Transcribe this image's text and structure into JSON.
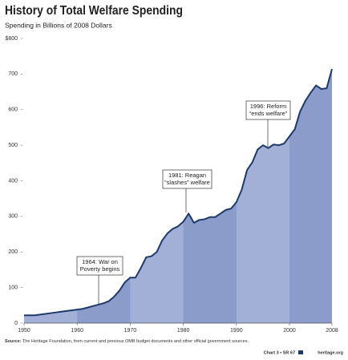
{
  "chart_data": {
    "type": "area",
    "title": "History of Total Welfare Spending",
    "subtitle": "Spending in Billions of 2008 Dollars",
    "x": [
      1950,
      1951,
      1952,
      1953,
      1954,
      1955,
      1956,
      1957,
      1958,
      1959,
      1960,
      1961,
      1962,
      1963,
      1964,
      1965,
      1966,
      1967,
      1968,
      1969,
      1970,
      1971,
      1972,
      1973,
      1974,
      1975,
      1976,
      1977,
      1978,
      1979,
      1980,
      1981,
      1982,
      1983,
      1984,
      1985,
      1986,
      1987,
      1988,
      1989,
      1990,
      1991,
      1992,
      1993,
      1994,
      1995,
      1996,
      1997,
      1998,
      1999,
      2000,
      2001,
      2002,
      2003,
      2004,
      2005,
      2006,
      2007,
      2008
    ],
    "values": [
      22,
      22,
      22,
      24,
      26,
      28,
      30,
      32,
      34,
      36,
      38,
      40,
      44,
      48,
      52,
      56,
      62,
      75,
      92,
      115,
      128,
      128,
      155,
      185,
      188,
      200,
      232,
      252,
      265,
      272,
      285,
      308,
      282,
      290,
      292,
      298,
      298,
      308,
      318,
      322,
      340,
      375,
      430,
      452,
      488,
      500,
      492,
      502,
      500,
      505,
      525,
      545,
      595,
      625,
      648,
      668,
      658,
      660,
      714
    ],
    "color": "#1d3a6b",
    "fill": "#a2b0d8",
    "band_fill": "#8b9cca",
    "xlim": [
      1950,
      2008
    ],
    "xticks": [
      1950,
      1960,
      1970,
      1980,
      1990,
      2000,
      2008
    ],
    "ylim": [
      0,
      800
    ],
    "yticks": [
      0,
      100,
      200,
      300,
      400,
      500,
      600,
      700,
      {
        "value": 800,
        "label": "$800"
      }
    ],
    "annotations": [
      [
        "1964: War on",
        "Poverty begins"
      ],
      [
        "1981: Reagan",
        "“slashes” welfare"
      ],
      [
        "1996: Reform",
        "“ends welfare”"
      ]
    ],
    "source_label": "Source:",
    "source": "The Heritage Foundation, from current and previous OMB budget documents and other official government sources.",
    "chart_id": "Chart 3 • SR 67",
    "site": "heritage.org"
  }
}
